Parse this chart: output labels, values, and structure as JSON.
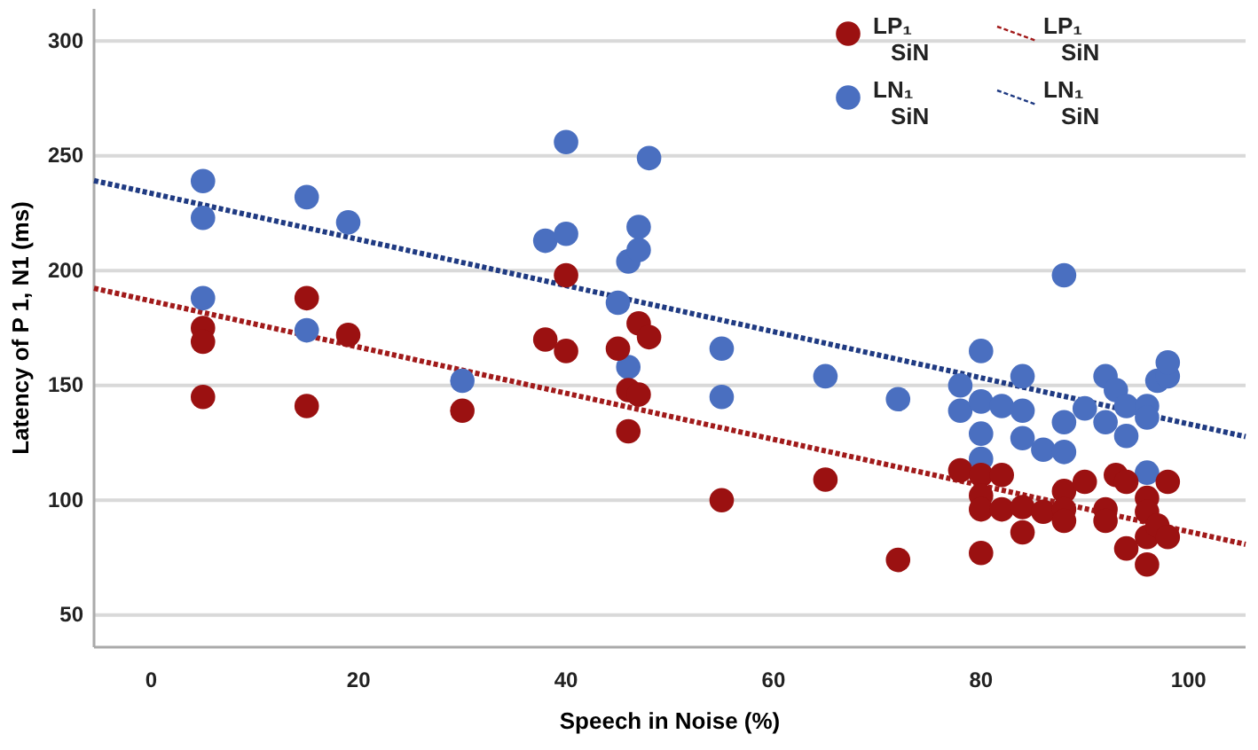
{
  "chart_data": {
    "type": "scatter",
    "xlabel": "Speech in Noise (%)",
    "ylabel": "Latency of P 1, N1 (ms)",
    "xlim": [
      -5.5,
      105.5
    ],
    "xticks": [
      0,
      20,
      40,
      60,
      80,
      100
    ],
    "ylim": [
      36,
      314
    ],
    "yticks": [
      50,
      100,
      150,
      200,
      250,
      300
    ],
    "grid": "y",
    "legend": "top right",
    "marker": "circle",
    "line_style": "dotted",
    "series": [
      {
        "name": "LP₁ SiN",
        "color": "#9b1111",
        "x": [
          5,
          5,
          5,
          15,
          15,
          19,
          30,
          38,
          40,
          40,
          45,
          46,
          46,
          47,
          47,
          48,
          55,
          65,
          72,
          78,
          80,
          80,
          80,
          80,
          82,
          82,
          84,
          84,
          86,
          88,
          88,
          88,
          90,
          92,
          92,
          93,
          94,
          94,
          96,
          96,
          96,
          96,
          97,
          98,
          98
        ],
        "values": [
          175,
          169,
          145,
          188,
          141,
          172,
          139,
          170,
          198,
          165,
          166,
          130,
          148,
          146,
          177,
          171,
          100,
          109,
          74,
          113,
          111,
          102,
          96,
          77,
          111,
          96,
          97,
          86,
          95,
          104,
          96,
          91,
          108,
          96,
          91,
          111,
          108,
          79,
          101,
          95,
          84,
          72,
          89,
          108,
          84
        ]
      },
      {
        "name": "LN₁ SiN",
        "color": "#4a6fc0",
        "x": [
          5,
          5,
          5,
          15,
          15,
          19,
          30,
          38,
          40,
          40,
          45,
          46,
          46,
          47,
          47,
          48,
          55,
          55,
          65,
          72,
          78,
          78,
          80,
          80,
          80,
          80,
          82,
          84,
          84,
          84,
          86,
          88,
          88,
          88,
          90,
          92,
          92,
          93,
          94,
          94,
          96,
          96,
          96,
          97,
          98,
          98
        ],
        "values": [
          239,
          223,
          188,
          174,
          232,
          221,
          152,
          213,
          216,
          256,
          186,
          204,
          158,
          209,
          219,
          249,
          166,
          145,
          154,
          144,
          150,
          139,
          165,
          143,
          129,
          118,
          141,
          154,
          139,
          127,
          122,
          198,
          134,
          121,
          140,
          154,
          134,
          148,
          141,
          128,
          141,
          136,
          112,
          152,
          154,
          160
        ]
      },
      {
        "type": "line",
        "name": "LP₁ SiN",
        "color": "#a11a1a",
        "marker": "none",
        "x": [
          -5.5,
          105.5
        ],
        "values": [
          192.3,
          80.8
        ]
      },
      {
        "type": "line",
        "name": "LN₁ SiN",
        "color": "#1f3a82",
        "marker": "none",
        "x": [
          -5.5,
          105.5
        ],
        "values": [
          239.2,
          127.7
        ]
      }
    ]
  }
}
